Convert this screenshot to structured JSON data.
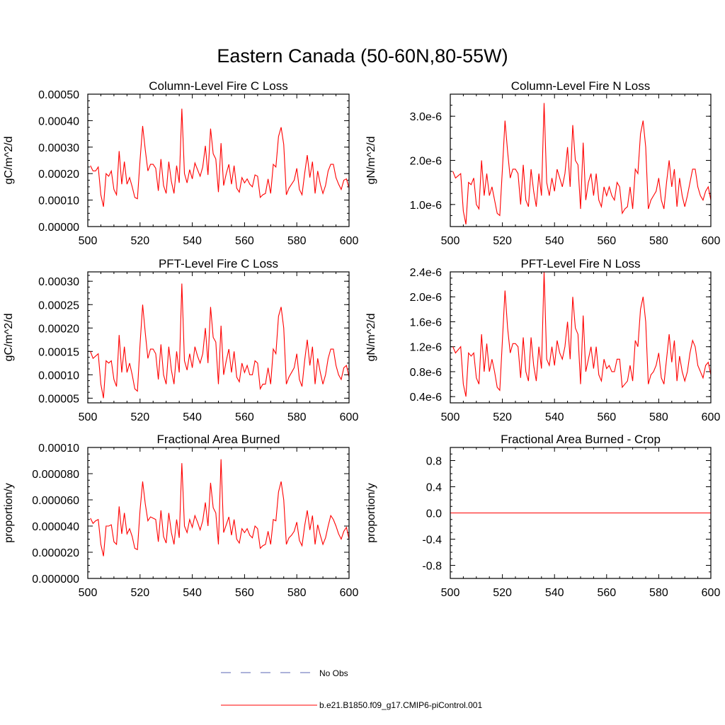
{
  "title": "Eastern Canada (50-60N,80-55W)",
  "colors": {
    "series": "#ff0000",
    "obs": "#5a64b4",
    "axis": "#000000"
  },
  "legend": {
    "obs_label": "No Obs",
    "series_label": "b.e21.B1850.f09_g17.CMIP6-piControl.001"
  },
  "chart_data": [
    {
      "type": "line",
      "title": "Column-Level Fire C Loss",
      "ylabel": "gC/m^2/d",
      "xlim": [
        500,
        600
      ],
      "ylim": [
        0,
        0.0005
      ],
      "xticks": [
        500,
        520,
        540,
        560,
        580,
        600
      ],
      "xtick_labels": [
        "500",
        "520",
        "540",
        "560",
        "580",
        "600"
      ],
      "yticks": [
        0,
        0.0001,
        0.0002,
        0.0003,
        0.0004,
        0.0005
      ],
      "ytick_labels": [
        "0.00000",
        "0.00010",
        "0.00020",
        "0.00030",
        "0.00040",
        "0.00050"
      ],
      "x": [
        501,
        502,
        503,
        504,
        505,
        506,
        507,
        508,
        509,
        510,
        511,
        512,
        513,
        514,
        515,
        516,
        517,
        518,
        519,
        520,
        521,
        522,
        523,
        524,
        525,
        526,
        527,
        528,
        529,
        530,
        531,
        532,
        533,
        534,
        535,
        536,
        537,
        538,
        539,
        540,
        541,
        542,
        543,
        544,
        545,
        546,
        547,
        548,
        549,
        550,
        551,
        552,
        553,
        554,
        555,
        556,
        557,
        558,
        559,
        560,
        561,
        562,
        563,
        564,
        565,
        566,
        567,
        568,
        569,
        570,
        571,
        572,
        573,
        574,
        575,
        576,
        577,
        578,
        579,
        580,
        581,
        582,
        583,
        584,
        585,
        586,
        587,
        588,
        589,
        590,
        591,
        592,
        593,
        594,
        595,
        596,
        597,
        598,
        599,
        600
      ],
      "values": [
        0.00023,
        0.00021,
        0.00021,
        0.000225,
        0.00012,
        7.5e-05,
        0.0002,
        0.00019,
        0.00021,
        0.00014,
        0.00012,
        0.000285,
        0.00016,
        0.000245,
        0.00016,
        0.000185,
        0.00015,
        0.00011,
        0.000105,
        0.00025,
        0.00038,
        0.00029,
        0.00021,
        0.000235,
        0.000235,
        0.00022,
        0.000135,
        0.000255,
        0.000155,
        0.000125,
        0.000245,
        0.00017,
        0.000125,
        0.00023,
        0.000165,
        0.000445,
        0.0002,
        0.000165,
        0.000215,
        0.00018,
        0.00024,
        0.000215,
        0.00019,
        0.000225,
        0.000305,
        0.000195,
        0.00037,
        0.000275,
        0.000255,
        0.00013,
        0.000315,
        0.000155,
        0.0002,
        0.000235,
        0.00016,
        0.00023,
        0.000145,
        0.00013,
        0.000185,
        0.000165,
        0.00018,
        0.00016,
        0.00015,
        0.000195,
        0.00019,
        0.00011,
        0.00012,
        0.000125,
        0.00018,
        0.000125,
        0.000235,
        0.000225,
        0.00034,
        0.000375,
        0.00031,
        0.00012,
        0.000145,
        0.00016,
        0.000175,
        0.00022,
        0.00014,
        0.00012,
        0.0002,
        0.00027,
        0.000185,
        0.000245,
        0.000125,
        0.00021,
        0.00016,
        0.000125,
        0.000155,
        0.00021,
        0.000235,
        0.000235,
        0.000185,
        0.00016,
        0.00014,
        0.000175,
        0.00018,
        0.000145
      ]
    },
    {
      "type": "line",
      "title": "Column-Level Fire N Loss",
      "ylabel": "gN/m^2/d",
      "xlim": [
        500,
        600
      ],
      "ylim": [
        5e-07,
        3.5e-06
      ],
      "xticks": [
        500,
        520,
        540,
        560,
        580,
        600
      ],
      "xtick_labels": [
        "500",
        "520",
        "540",
        "560",
        "580",
        "600"
      ],
      "yticks": [
        1e-06,
        2e-06,
        3e-06
      ],
      "ytick_labels": [
        "1.0e-6",
        "2.0e-6",
        "3.0e-6"
      ],
      "x": [
        501,
        502,
        503,
        504,
        505,
        506,
        507,
        508,
        509,
        510,
        511,
        512,
        513,
        514,
        515,
        516,
        517,
        518,
        519,
        520,
        521,
        522,
        523,
        524,
        525,
        526,
        527,
        528,
        529,
        530,
        531,
        532,
        533,
        534,
        535,
        536,
        537,
        538,
        539,
        540,
        541,
        542,
        543,
        544,
        545,
        546,
        547,
        548,
        549,
        550,
        551,
        552,
        553,
        554,
        555,
        556,
        557,
        558,
        559,
        560,
        561,
        562,
        563,
        564,
        565,
        566,
        567,
        568,
        569,
        570,
        571,
        572,
        573,
        574,
        575,
        576,
        577,
        578,
        579,
        580,
        581,
        582,
        583,
        584,
        585,
        586,
        587,
        588,
        589,
        590,
        591,
        592,
        593,
        594,
        595,
        596,
        597,
        598,
        599,
        600
      ],
      "values": [
        1.75e-06,
        1.6e-06,
        1.65e-06,
        1.7e-06,
        8.5e-07,
        5.5e-07,
        1.5e-06,
        1.45e-06,
        1.6e-06,
        1e-06,
        9e-07,
        2e-06,
        1.2e-06,
        1.7e-06,
        1.2e-06,
        1.4e-06,
        1.1e-06,
        8e-07,
        7.5e-07,
        1.8e-06,
        2.9e-06,
        2.2e-06,
        1.6e-06,
        1.8e-06,
        1.8e-06,
        1.7e-06,
        1e-06,
        1.9e-06,
        1.1e-06,
        9.5e-07,
        1.8e-06,
        1.3e-06,
        9.5e-07,
        1.7e-06,
        1.2e-06,
        3.3e-06,
        1.5e-06,
        1.2e-06,
        1.6e-06,
        1.3e-06,
        1.8e-06,
        1.6e-06,
        1.4e-06,
        1.7e-06,
        2.3e-06,
        1.4e-06,
        2.8e-06,
        2e-06,
        1.9e-06,
        9e-07,
        2.4e-06,
        1.1e-06,
        1.5e-06,
        1.7e-06,
        1.2e-06,
        1.7e-06,
        1.1e-06,
        9.5e-07,
        1.4e-06,
        1.2e-06,
        1.4e-06,
        1.2e-06,
        1.1e-06,
        1.5e-06,
        1.4e-06,
        8e-07,
        9e-07,
        9.5e-07,
        1.4e-06,
        9e-07,
        1.8e-06,
        1.7e-06,
        2.6e-06,
        2.9e-06,
        2.3e-06,
        9e-07,
        1.1e-06,
        1.2e-06,
        1.3e-06,
        1.6e-06,
        1.1e-06,
        9e-07,
        1.5e-06,
        2e-06,
        1.4e-06,
        1.8e-06,
        9.5e-07,
        1.6e-06,
        1.2e-06,
        9.5e-07,
        1.2e-06,
        1.5e-06,
        1.8e-06,
        1.8e-06,
        1.4e-06,
        1.2e-06,
        1.1e-06,
        1.3e-06,
        1.4e-06,
        1.1e-06
      ]
    },
    {
      "type": "line",
      "title": "PFT-Level Fire C Loss",
      "ylabel": "gC/m^2/d",
      "xlim": [
        500,
        600
      ],
      "ylim": [
        4e-05,
        0.00032
      ],
      "xticks": [
        500,
        520,
        540,
        560,
        580,
        600
      ],
      "xtick_labels": [
        "500",
        "520",
        "540",
        "560",
        "580",
        "600"
      ],
      "yticks": [
        5e-05,
        0.0001,
        0.00015,
        0.0002,
        0.00025,
        0.0003
      ],
      "ytick_labels": [
        "0.00005",
        "0.00010",
        "0.00015",
        "0.00020",
        "0.00025",
        "0.00030"
      ],
      "x": [
        501,
        502,
        503,
        504,
        505,
        506,
        507,
        508,
        509,
        510,
        511,
        512,
        513,
        514,
        515,
        516,
        517,
        518,
        519,
        520,
        521,
        522,
        523,
        524,
        525,
        526,
        527,
        528,
        529,
        530,
        531,
        532,
        533,
        534,
        535,
        536,
        537,
        538,
        539,
        540,
        541,
        542,
        543,
        544,
        545,
        546,
        547,
        548,
        549,
        550,
        551,
        552,
        553,
        554,
        555,
        556,
        557,
        558,
        559,
        560,
        561,
        562,
        563,
        564,
        565,
        566,
        567,
        568,
        569,
        570,
        571,
        572,
        573,
        574,
        575,
        576,
        577,
        578,
        579,
        580,
        581,
        582,
        583,
        584,
        585,
        586,
        587,
        588,
        589,
        590,
        591,
        592,
        593,
        594,
        595,
        596,
        597,
        598,
        599,
        600
      ],
      "values": [
        0.00015,
        0.000135,
        0.00014,
        0.000145,
        8e-05,
        5e-05,
        0.00013,
        0.000125,
        0.00013,
        9e-05,
        7.5e-05,
        0.000185,
        0.000105,
        0.00016,
        0.000105,
        0.000125,
        0.0001,
        7e-05,
        6.5e-05,
        0.000165,
        0.00025,
        0.00019,
        0.000135,
        0.000155,
        0.000155,
        0.000145,
        9e-05,
        0.000165,
        0.0001,
        8e-05,
        0.00016,
        0.00011,
        8e-05,
        0.00015,
        0.000105,
        0.000295,
        0.00013,
        0.00011,
        0.000145,
        0.000115,
        0.00016,
        0.00014,
        0.000125,
        0.000145,
        0.0002,
        0.000125,
        0.000245,
        0.00018,
        0.00017,
        8e-05,
        0.000205,
        0.0001,
        0.00013,
        0.000155,
        0.000105,
        0.00015,
        9.5e-05,
        8.5e-05,
        0.000125,
        0.000105,
        0.00012,
        0.0001,
        0.0001,
        0.00013,
        0.000125,
        7e-05,
        8e-05,
        8e-05,
        0.000115,
        8e-05,
        0.000155,
        0.000145,
        0.000225,
        0.000245,
        0.0002,
        8e-05,
        9.5e-05,
        0.000105,
        0.000115,
        0.000145,
        9e-05,
        7.5e-05,
        0.00013,
        0.000175,
        0.00012,
        0.00016,
        8e-05,
        0.000135,
        0.000105,
        8e-05,
        0.0001,
        0.000135,
        0.000155,
        0.000155,
        0.00012,
        0.0001,
        9e-05,
        0.000115,
        0.00012,
        9.5e-05
      ]
    },
    {
      "type": "line",
      "title": "PFT-Level Fire N Loss",
      "ylabel": "gN/m^2/d",
      "xlim": [
        500,
        600
      ],
      "ylim": [
        3e-07,
        2.4e-06
      ],
      "xticks": [
        500,
        520,
        540,
        560,
        580,
        600
      ],
      "xtick_labels": [
        "500",
        "520",
        "540",
        "560",
        "580",
        "600"
      ],
      "yticks": [
        4e-07,
        8e-07,
        1.2e-06,
        1.6e-06,
        2e-06,
        2.4e-06
      ],
      "ytick_labels": [
        "0.4e-6",
        "0.8e-6",
        "1.2e-6",
        "1.6e-6",
        "2.0e-6",
        "2.4e-6"
      ],
      "x": [
        501,
        502,
        503,
        504,
        505,
        506,
        507,
        508,
        509,
        510,
        511,
        512,
        513,
        514,
        515,
        516,
        517,
        518,
        519,
        520,
        521,
        522,
        523,
        524,
        525,
        526,
        527,
        528,
        529,
        530,
        531,
        532,
        533,
        534,
        535,
        536,
        537,
        538,
        539,
        540,
        541,
        542,
        543,
        544,
        545,
        546,
        547,
        548,
        549,
        550,
        551,
        552,
        553,
        554,
        555,
        556,
        557,
        558,
        559,
        560,
        561,
        562,
        563,
        564,
        565,
        566,
        567,
        568,
        569,
        570,
        571,
        572,
        573,
        574,
        575,
        576,
        577,
        578,
        579,
        580,
        581,
        582,
        583,
        584,
        585,
        586,
        587,
        588,
        589,
        590,
        591,
        592,
        593,
        594,
        595,
        596,
        597,
        598,
        599,
        600
      ],
      "values": [
        1.2e-06,
        1.1e-06,
        1.15e-06,
        1.2e-06,
        6e-07,
        4e-07,
        1.1e-06,
        1.05e-06,
        1.1e-06,
        7e-07,
        6e-07,
        1.4e-06,
        8e-07,
        1.25e-06,
        8e-07,
        1e-06,
        8e-07,
        5.5e-07,
        5e-07,
        1.3e-06,
        2.1e-06,
        1.5e-06,
        1.1e-06,
        1.25e-06,
        1.25e-06,
        1.2e-06,
        7e-07,
        1.35e-06,
        8e-07,
        6.5e-07,
        1.35e-06,
        9e-07,
        6.5e-07,
        1.2e-06,
        8.5e-07,
        2.4e-06,
        1e-06,
        9e-07,
        1.2e-06,
        9e-07,
        1.3e-06,
        1.1e-06,
        1e-06,
        1.2e-06,
        1.6e-06,
        1e-06,
        2e-06,
        1.5e-06,
        1.4e-06,
        6e-07,
        1.7e-06,
        8e-07,
        1e-06,
        1.2e-06,
        8.5e-07,
        1.2e-06,
        7.5e-07,
        6.5e-07,
        1e-06,
        8.5e-07,
        9e-07,
        8e-07,
        8e-07,
        1e-06,
        1e-06,
        5.5e-07,
        6e-07,
        6.5e-07,
        9e-07,
        6.5e-07,
        1.3e-06,
        1.2e-06,
        1.8e-06,
        2e-06,
        1.6e-06,
        6e-07,
        7.5e-07,
        8e-07,
        9e-07,
        1.1e-06,
        7e-07,
        6e-07,
        1e-06,
        1.4e-06,
        9.5e-07,
        1.3e-06,
        6.5e-07,
        1.05e-06,
        8e-07,
        6.5e-07,
        8e-07,
        1.1e-06,
        1.3e-06,
        1.2e-06,
        9e-07,
        8e-07,
        7e-07,
        9e-07,
        9.5e-07,
        7.5e-07
      ]
    },
    {
      "type": "line",
      "title": "Fractional Area Burned",
      "ylabel": "proportion/y",
      "xlim": [
        500,
        600
      ],
      "ylim": [
        0,
        0.0001
      ],
      "xticks": [
        500,
        520,
        540,
        560,
        580,
        600
      ],
      "xtick_labels": [
        "500",
        "520",
        "540",
        "560",
        "580",
        "600"
      ],
      "yticks": [
        0,
        2e-05,
        4e-05,
        6e-05,
        8e-05,
        0.0001
      ],
      "ytick_labels": [
        "0.000000",
        "0.000020",
        "0.000040",
        "0.000060",
        "0.000080",
        "0.00010"
      ],
      "x": [
        501,
        502,
        503,
        504,
        505,
        506,
        507,
        508,
        509,
        510,
        511,
        512,
        513,
        514,
        515,
        516,
        517,
        518,
        519,
        520,
        521,
        522,
        523,
        524,
        525,
        526,
        527,
        528,
        529,
        530,
        531,
        532,
        533,
        534,
        535,
        536,
        537,
        538,
        539,
        540,
        541,
        542,
        543,
        544,
        545,
        546,
        547,
        548,
        549,
        550,
        551,
        552,
        553,
        554,
        555,
        556,
        557,
        558,
        559,
        560,
        561,
        562,
        563,
        564,
        565,
        566,
        567,
        568,
        569,
        570,
        571,
        572,
        573,
        574,
        575,
        576,
        577,
        578,
        579,
        580,
        581,
        582,
        583,
        584,
        585,
        586,
        587,
        588,
        589,
        590,
        591,
        592,
        593,
        594,
        595,
        596,
        597,
        598,
        599,
        600
      ],
      "values": [
        4.6e-05,
        4.2e-05,
        4.4e-05,
        4.5e-05,
        2.6e-05,
        1.7e-05,
        4e-05,
        4e-05,
        4.1e-05,
        2.8e-05,
        2.6e-05,
        5.5e-05,
        3.4e-05,
        5e-05,
        3.4e-05,
        3.8e-05,
        3.2e-05,
        2.3e-05,
        2.2e-05,
        5.2e-05,
        7.4e-05,
        5.7e-05,
        4.4e-05,
        4.7e-05,
        4.6e-05,
        4.5e-05,
        2.8e-05,
        5.2e-05,
        3.2e-05,
        2.7e-05,
        5e-05,
        3.5e-05,
        2.6e-05,
        4.5e-05,
        3.1e-05,
        8.8e-05,
        4e-05,
        3.5e-05,
        4.5e-05,
        3.9e-05,
        4.8e-05,
        4.3e-05,
        3.7e-05,
        4.4e-05,
        5.8e-05,
        4e-05,
        7.3e-05,
        5.4e-05,
        5e-05,
        2.6e-05,
        9.1e-05,
        3.5e-05,
        4.1e-05,
        4.7e-05,
        3.3e-05,
        4.5e-05,
        3e-05,
        2.7e-05,
        3.8e-05,
        3.5e-05,
        3.8e-05,
        3.3e-05,
        3.1e-05,
        4e-05,
        3.8e-05,
        2.3e-05,
        2.5e-05,
        2.6e-05,
        3.6e-05,
        2.6e-05,
        4.5e-05,
        4.4e-05,
        6.6e-05,
        7.4e-05,
        6e-05,
        2.6e-05,
        3.1e-05,
        3.3e-05,
        3.6e-05,
        4.3e-05,
        2.9e-05,
        2.5e-05,
        4e-05,
        5.2e-05,
        3.7e-05,
        4.8e-05,
        2.6e-05,
        4.1e-05,
        3.3e-05,
        2.6e-05,
        3.1e-05,
        4e-05,
        4.8e-05,
        4.5e-05,
        4e-05,
        3.4e-05,
        3e-05,
        3.6e-05,
        3.9e-05,
        3e-05
      ]
    },
    {
      "type": "line",
      "title": "Fractional Area Burned - Crop",
      "ylabel": "proportion/y",
      "xlim": [
        500,
        600
      ],
      "ylim": [
        -1,
        1
      ],
      "xticks": [
        500,
        520,
        540,
        560,
        580,
        600
      ],
      "xtick_labels": [
        "500",
        "520",
        "540",
        "560",
        "580",
        "600"
      ],
      "yticks": [
        -0.8,
        -0.4,
        0,
        0.4,
        0.8
      ],
      "ytick_labels": [
        "-0.8",
        "-0.4",
        "0.0",
        "0.4",
        "0.8"
      ],
      "x": [
        500,
        600
      ],
      "values": [
        0,
        0
      ]
    }
  ]
}
